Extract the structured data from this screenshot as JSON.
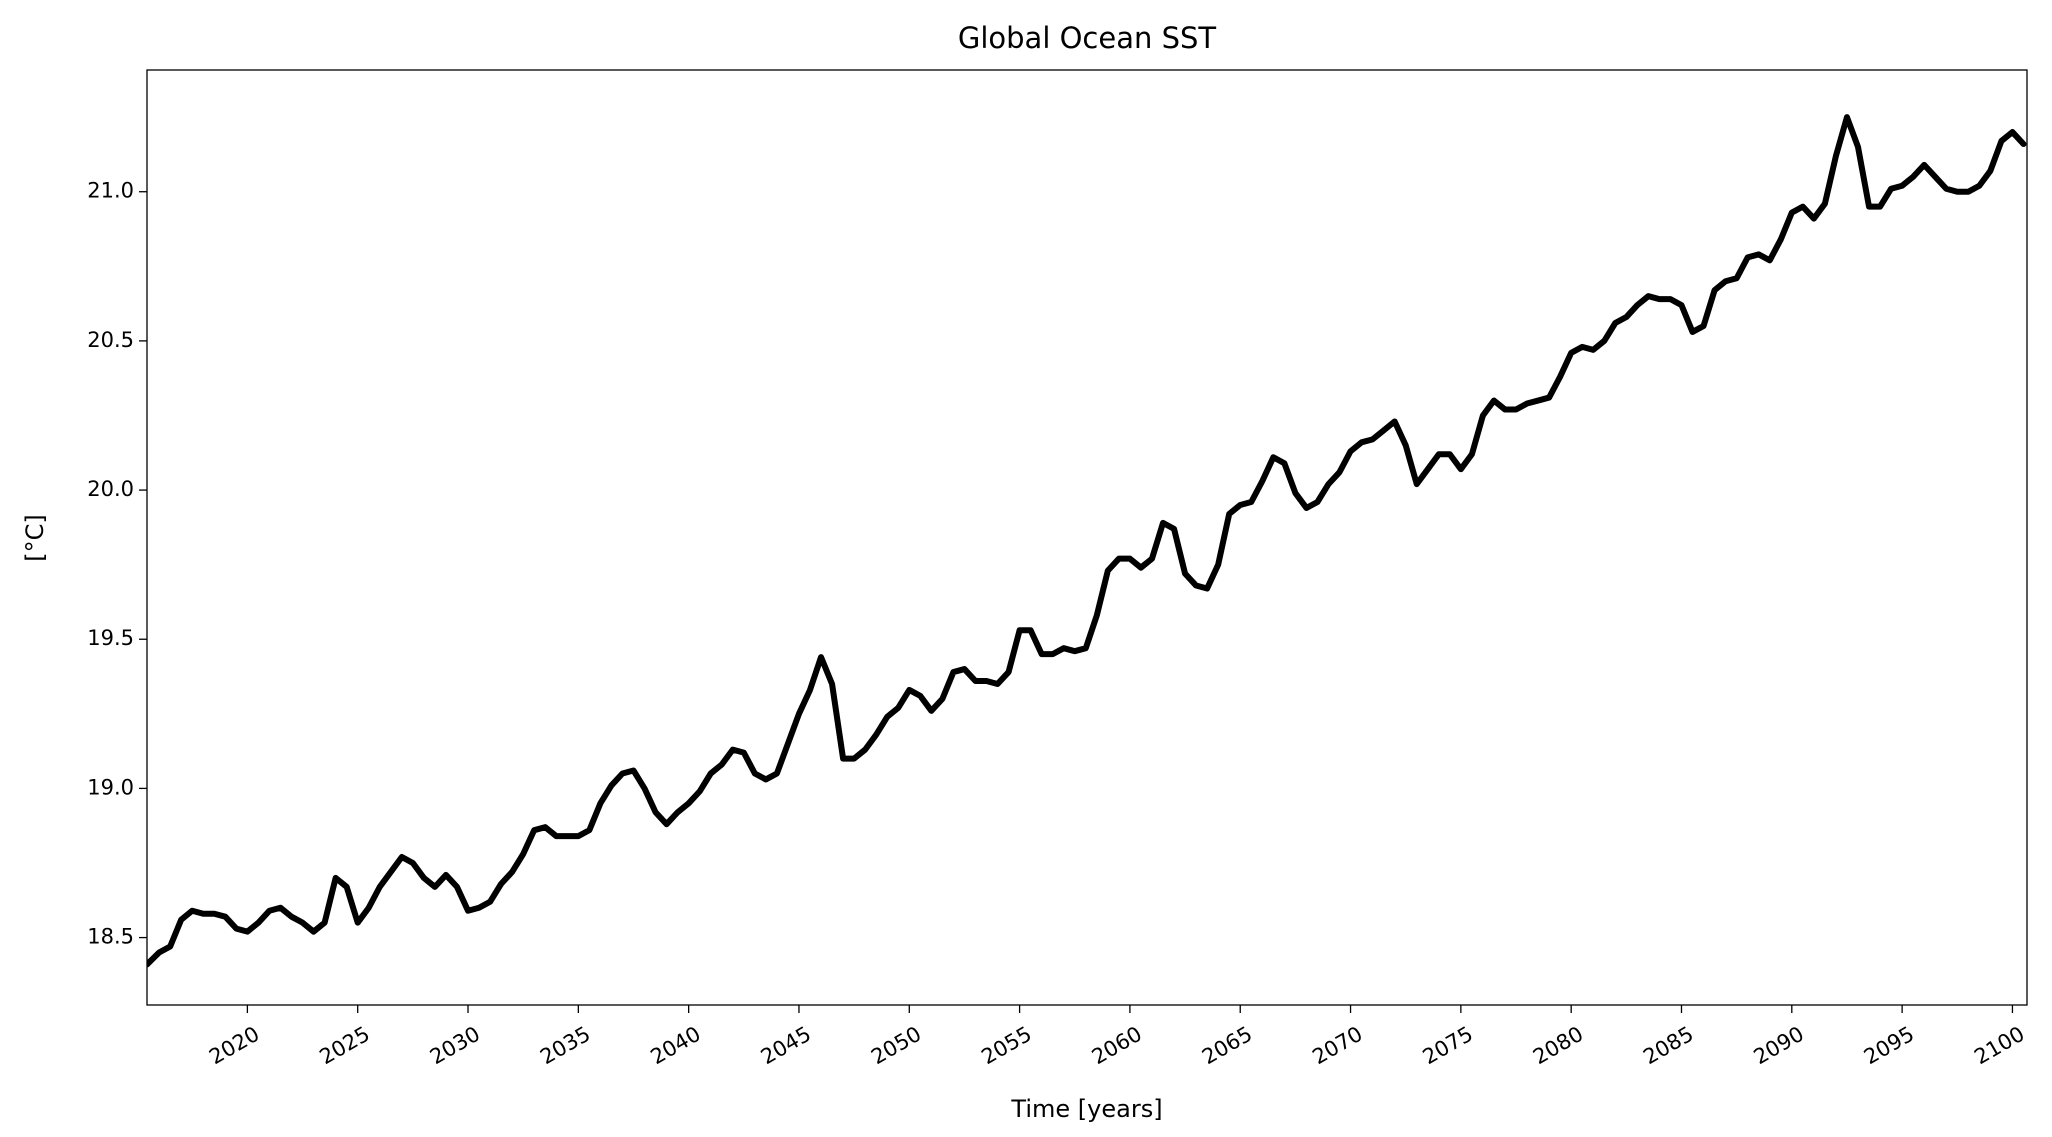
{
  "chart_data": {
    "type": "line",
    "title": "Global Ocean SST",
    "xlabel": "Time [years]",
    "ylabel": "[°C]",
    "color": "#000000",
    "x": [
      2015.45,
      2016,
      2016.5,
      2017,
      2017.5,
      2018,
      2018.5,
      2019,
      2019.5,
      2020,
      2020.5,
      2021,
      2021.5,
      2022,
      2022.5,
      2023,
      2023.5,
      2024,
      2024.5,
      2025,
      2025.5,
      2026,
      2026.5,
      2027,
      2027.5,
      2028,
      2028.5,
      2029,
      2029.5,
      2030,
      2030.5,
      2031,
      2031.5,
      2032,
      2032.5,
      2033,
      2033.5,
      2034,
      2034.5,
      2035,
      2035.5,
      2036,
      2036.5,
      2037,
      2037.5,
      2038,
      2038.5,
      2039,
      2039.5,
      2040,
      2040.5,
      2041,
      2041.5,
      2042,
      2042.5,
      2043,
      2043.5,
      2044,
      2044.5,
      2045,
      2045.5,
      2046,
      2046.5,
      2047,
      2047.5,
      2048,
      2048.5,
      2049,
      2049.5,
      2050,
      2050.5,
      2051,
      2051.5,
      2052,
      2052.5,
      2053,
      2053.5,
      2054,
      2054.5,
      2055,
      2055.5,
      2056,
      2056.5,
      2057,
      2057.5,
      2058,
      2058.5,
      2059,
      2059.5,
      2060,
      2060.5,
      2061,
      2061.5,
      2062,
      2062.5,
      2063,
      2063.5,
      2064,
      2064.5,
      2065,
      2065.5,
      2066,
      2066.5,
      2067,
      2067.5,
      2068,
      2068.5,
      2069,
      2069.5,
      2070,
      2070.5,
      2071,
      2071.5,
      2072,
      2072.5,
      2073,
      2073.5,
      2074,
      2074.5,
      2075,
      2075.5,
      2076,
      2076.5,
      2077,
      2077.5,
      2078,
      2078.5,
      2079,
      2079.5,
      2080,
      2080.5,
      2081,
      2081.5,
      2082,
      2082.5,
      2083,
      2083.5,
      2084,
      2084.5,
      2085,
      2085.5,
      2086,
      2086.5,
      2087,
      2087.5,
      2088,
      2088.5,
      2089,
      2089.5,
      2090,
      2090.5,
      2091,
      2091.5,
      2092,
      2092.5,
      2093,
      2093.5,
      2094,
      2094.5,
      2095,
      2095.5,
      2096,
      2096.5,
      2097,
      2097.5,
      2098,
      2098.5,
      2099,
      2099.5,
      2100,
      2100.5
    ],
    "values": [
      18.41,
      18.45,
      18.47,
      18.56,
      18.59,
      18.58,
      18.58,
      18.57,
      18.53,
      18.52,
      18.55,
      18.59,
      18.6,
      18.57,
      18.55,
      18.52,
      18.55,
      18.7,
      18.67,
      18.55,
      18.6,
      18.67,
      18.72,
      18.77,
      18.75,
      18.7,
      18.67,
      18.71,
      18.67,
      18.59,
      18.6,
      18.62,
      18.68,
      18.72,
      18.78,
      18.86,
      18.87,
      18.84,
      18.84,
      18.84,
      18.86,
      18.95,
      19.01,
      19.05,
      19.06,
      19.0,
      18.92,
      18.88,
      18.92,
      18.95,
      18.99,
      19.05,
      19.08,
      19.13,
      19.12,
      19.05,
      19.03,
      19.05,
      19.15,
      19.25,
      19.33,
      19.44,
      19.35,
      19.1,
      19.1,
      19.13,
      19.18,
      19.24,
      19.27,
      19.33,
      19.31,
      19.26,
      19.3,
      19.39,
      19.4,
      19.36,
      19.36,
      19.35,
      19.39,
      19.53,
      19.53,
      19.45,
      19.45,
      19.47,
      19.46,
      19.47,
      19.58,
      19.73,
      19.77,
      19.77,
      19.74,
      19.77,
      19.89,
      19.87,
      19.72,
      19.68,
      19.67,
      19.75,
      19.92,
      19.95,
      19.96,
      20.03,
      20.11,
      20.09,
      19.99,
      19.94,
      19.96,
      20.02,
      20.06,
      20.13,
      20.16,
      20.17,
      20.2,
      20.23,
      20.15,
      20.02,
      20.07,
      20.12,
      20.12,
      20.07,
      20.12,
      20.25,
      20.3,
      20.27,
      20.27,
      20.29,
      20.3,
      20.31,
      20.38,
      20.46,
      20.48,
      20.47,
      20.5,
      20.56,
      20.58,
      20.62,
      20.65,
      20.64,
      20.64,
      20.62,
      20.53,
      20.55,
      20.67,
      20.7,
      20.71,
      20.78,
      20.79,
      20.77,
      20.84,
      20.93,
      20.95,
      20.91,
      20.96,
      21.12,
      21.25,
      21.15,
      20.95,
      20.95,
      21.01,
      21.02,
      21.05,
      21.09,
      21.05,
      21.01,
      21.0,
      21.0,
      21.02,
      21.07,
      21.17,
      21.2,
      21.16
    ],
    "xlim": [
      2015.45,
      2100.66
    ],
    "xticks": [
      2020,
      2025,
      2030,
      2035,
      2040,
      2045,
      2050,
      2055,
      2060,
      2065,
      2070,
      2075,
      2080,
      2085,
      2090,
      2095,
      2100
    ],
    "ylim": [
      18.274,
      21.408
    ],
    "yticks": [
      18.5,
      {
        "value": 19,
        "label": "19.0"
      },
      19.5,
      {
        "value": 20,
        "label": "20.0"
      },
      20.5,
      {
        "value": 21,
        "label": "21.0"
      }
    ],
    "grid": false
  }
}
